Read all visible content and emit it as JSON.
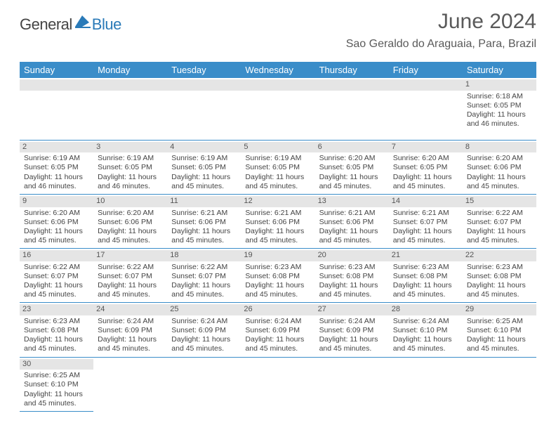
{
  "brand": {
    "part1": "General",
    "part2": "Blue",
    "logo_color": "#2a7ab8"
  },
  "title": "June 2024",
  "location": "Sao Geraldo do Araguaia, Para, Brazil",
  "accent_color": "#3a8dc9",
  "day_headers": [
    "Sunday",
    "Monday",
    "Tuesday",
    "Wednesday",
    "Thursday",
    "Friday",
    "Saturday"
  ],
  "weeks": [
    [
      null,
      null,
      null,
      null,
      null,
      null,
      {
        "d": "1",
        "sr": "6:18 AM",
        "ss": "6:05 PM",
        "dl": "11 hours and 46 minutes."
      }
    ],
    [
      {
        "d": "2",
        "sr": "6:19 AM",
        "ss": "6:05 PM",
        "dl": "11 hours and 46 minutes."
      },
      {
        "d": "3",
        "sr": "6:19 AM",
        "ss": "6:05 PM",
        "dl": "11 hours and 46 minutes."
      },
      {
        "d": "4",
        "sr": "6:19 AM",
        "ss": "6:05 PM",
        "dl": "11 hours and 45 minutes."
      },
      {
        "d": "5",
        "sr": "6:19 AM",
        "ss": "6:05 PM",
        "dl": "11 hours and 45 minutes."
      },
      {
        "d": "6",
        "sr": "6:20 AM",
        "ss": "6:05 PM",
        "dl": "11 hours and 45 minutes."
      },
      {
        "d": "7",
        "sr": "6:20 AM",
        "ss": "6:05 PM",
        "dl": "11 hours and 45 minutes."
      },
      {
        "d": "8",
        "sr": "6:20 AM",
        "ss": "6:06 PM",
        "dl": "11 hours and 45 minutes."
      }
    ],
    [
      {
        "d": "9",
        "sr": "6:20 AM",
        "ss": "6:06 PM",
        "dl": "11 hours and 45 minutes."
      },
      {
        "d": "10",
        "sr": "6:20 AM",
        "ss": "6:06 PM",
        "dl": "11 hours and 45 minutes."
      },
      {
        "d": "11",
        "sr": "6:21 AM",
        "ss": "6:06 PM",
        "dl": "11 hours and 45 minutes."
      },
      {
        "d": "12",
        "sr": "6:21 AM",
        "ss": "6:06 PM",
        "dl": "11 hours and 45 minutes."
      },
      {
        "d": "13",
        "sr": "6:21 AM",
        "ss": "6:06 PM",
        "dl": "11 hours and 45 minutes."
      },
      {
        "d": "14",
        "sr": "6:21 AM",
        "ss": "6:07 PM",
        "dl": "11 hours and 45 minutes."
      },
      {
        "d": "15",
        "sr": "6:22 AM",
        "ss": "6:07 PM",
        "dl": "11 hours and 45 minutes."
      }
    ],
    [
      {
        "d": "16",
        "sr": "6:22 AM",
        "ss": "6:07 PM",
        "dl": "11 hours and 45 minutes."
      },
      {
        "d": "17",
        "sr": "6:22 AM",
        "ss": "6:07 PM",
        "dl": "11 hours and 45 minutes."
      },
      {
        "d": "18",
        "sr": "6:22 AM",
        "ss": "6:07 PM",
        "dl": "11 hours and 45 minutes."
      },
      {
        "d": "19",
        "sr": "6:23 AM",
        "ss": "6:08 PM",
        "dl": "11 hours and 45 minutes."
      },
      {
        "d": "20",
        "sr": "6:23 AM",
        "ss": "6:08 PM",
        "dl": "11 hours and 45 minutes."
      },
      {
        "d": "21",
        "sr": "6:23 AM",
        "ss": "6:08 PM",
        "dl": "11 hours and 45 minutes."
      },
      {
        "d": "22",
        "sr": "6:23 AM",
        "ss": "6:08 PM",
        "dl": "11 hours and 45 minutes."
      }
    ],
    [
      {
        "d": "23",
        "sr": "6:23 AM",
        "ss": "6:08 PM",
        "dl": "11 hours and 45 minutes."
      },
      {
        "d": "24",
        "sr": "6:24 AM",
        "ss": "6:09 PM",
        "dl": "11 hours and 45 minutes."
      },
      {
        "d": "25",
        "sr": "6:24 AM",
        "ss": "6:09 PM",
        "dl": "11 hours and 45 minutes."
      },
      {
        "d": "26",
        "sr": "6:24 AM",
        "ss": "6:09 PM",
        "dl": "11 hours and 45 minutes."
      },
      {
        "d": "27",
        "sr": "6:24 AM",
        "ss": "6:09 PM",
        "dl": "11 hours and 45 minutes."
      },
      {
        "d": "28",
        "sr": "6:24 AM",
        "ss": "6:10 PM",
        "dl": "11 hours and 45 minutes."
      },
      {
        "d": "29",
        "sr": "6:25 AM",
        "ss": "6:10 PM",
        "dl": "11 hours and 45 minutes."
      }
    ],
    [
      {
        "d": "30",
        "sr": "6:25 AM",
        "ss": "6:10 PM",
        "dl": "11 hours and 45 minutes."
      },
      null,
      null,
      null,
      null,
      null,
      null
    ]
  ],
  "labels": {
    "sunrise": "Sunrise:",
    "sunset": "Sunset:",
    "daylight": "Daylight:"
  }
}
